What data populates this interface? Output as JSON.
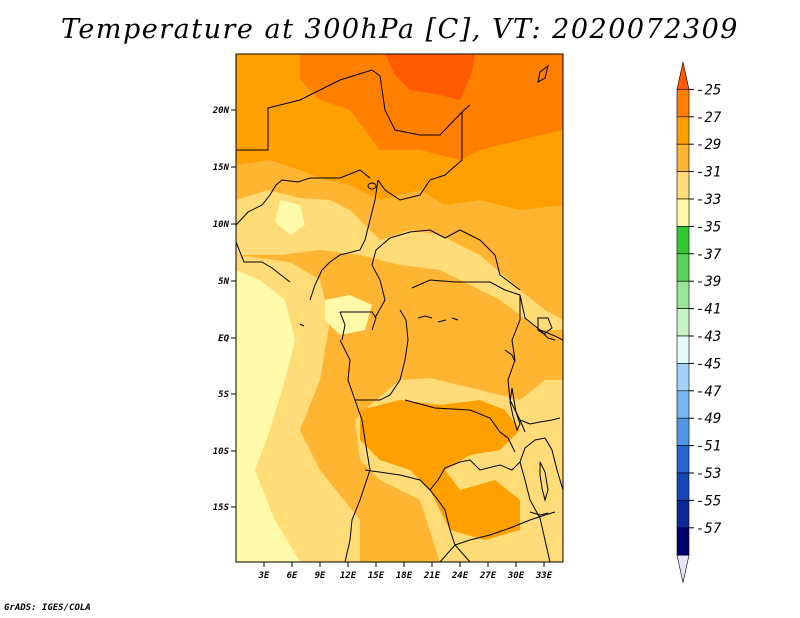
{
  "title": "Temperature at 300hPa [C], VT: 2020072309",
  "credit": "GrADS: IGES/COLA",
  "map": {
    "region": "Central Africa",
    "variable": "Temperature",
    "level": "300hPa",
    "units": "C",
    "valid_time": "2020072309",
    "lat_ticks": [
      "20N",
      "15N",
      "10N",
      "5N",
      "EQ",
      "5S",
      "10S",
      "15S"
    ],
    "lon_ticks": [
      "3E",
      "6E",
      "9E",
      "12E",
      "15E",
      "18E",
      "21E",
      "24E",
      "27E",
      "30E",
      "33E"
    ]
  },
  "colorbar": {
    "labels": [
      "-25",
      "-27",
      "-29",
      "-31",
      "-33",
      "-35",
      "-37",
      "-39",
      "-41",
      "-43",
      "-45",
      "-47",
      "-49",
      "-51",
      "-53",
      "-55",
      "-57"
    ],
    "colors": [
      "#ff5a00",
      "#ff7f00",
      "#ffa000",
      "#ffb432",
      "#ffdc78",
      "#fffaaa",
      "#32c832",
      "#5ad25a",
      "#96e696",
      "#c8f5c8",
      "#e6fafa",
      "#a0d2fa",
      "#78b4f0",
      "#5096e6",
      "#2864d2",
      "#1446b4",
      "#0a289a",
      "#000070",
      "#e6e6fa"
    ]
  }
}
